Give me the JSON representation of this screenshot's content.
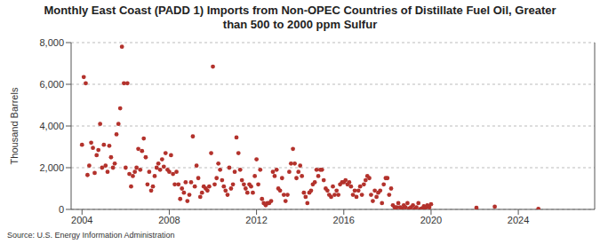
{
  "chart_data": {
    "type": "scatter",
    "title": "Monthly East Coast (PADD 1) Imports from Non-OPEC Countries of Distillate Fuel Oil, Greater than 500 to 2000 ppm Sulfur",
    "y_label": "Thousand Barrels",
    "source": "Source: U.S. Energy Information Administration",
    "color": "#b3322c",
    "marker": "circle",
    "grid": true,
    "xlim": [
      2003.5,
      2027.5
    ],
    "xticks": [
      2004,
      2008,
      2012,
      2016,
      2020,
      2024
    ],
    "ylim": [
      0,
      8000
    ],
    "yticks": [
      0,
      {
        "value": 2000,
        "label": "2,000"
      },
      {
        "value": 4000,
        "label": "4,000"
      },
      {
        "value": 6000,
        "label": "6,000"
      },
      {
        "value": 8000,
        "label": "8,000"
      }
    ],
    "x": [
      2004.0,
      2004.08,
      2004.17,
      2004.25,
      2004.33,
      2004.42,
      2004.5,
      2004.58,
      2004.67,
      2004.75,
      2004.83,
      2004.92,
      2005.0,
      2005.08,
      2005.17,
      2005.25,
      2005.33,
      2005.42,
      2005.5,
      2005.58,
      2005.67,
      2005.75,
      2005.83,
      2005.92,
      2006.0,
      2006.08,
      2006.17,
      2006.25,
      2006.33,
      2006.42,
      2006.5,
      2006.58,
      2006.67,
      2006.75,
      2006.83,
      2006.92,
      2007.0,
      2007.08,
      2007.17,
      2007.25,
      2007.33,
      2007.42,
      2007.5,
      2007.58,
      2007.67,
      2007.75,
      2007.83,
      2007.92,
      2008.0,
      2008.08,
      2008.17,
      2008.25,
      2008.33,
      2008.42,
      2008.5,
      2008.58,
      2008.67,
      2008.75,
      2008.83,
      2008.92,
      2009.0,
      2009.08,
      2009.17,
      2009.25,
      2009.33,
      2009.42,
      2009.5,
      2009.58,
      2009.67,
      2009.75,
      2009.83,
      2009.92,
      2010.0,
      2010.08,
      2010.17,
      2010.25,
      2010.33,
      2010.42,
      2010.5,
      2010.58,
      2010.67,
      2010.75,
      2010.83,
      2010.92,
      2011.0,
      2011.08,
      2011.17,
      2011.25,
      2011.33,
      2011.42,
      2011.5,
      2011.58,
      2011.67,
      2011.75,
      2011.83,
      2011.92,
      2012.0,
      2012.08,
      2012.17,
      2012.25,
      2012.33,
      2012.42,
      2012.5,
      2012.58,
      2012.67,
      2012.75,
      2012.83,
      2012.92,
      2013.0,
      2013.08,
      2013.17,
      2013.25,
      2013.33,
      2013.42,
      2013.5,
      2013.58,
      2013.67,
      2013.75,
      2013.83,
      2013.92,
      2014.0,
      2014.08,
      2014.17,
      2014.25,
      2014.33,
      2014.42,
      2014.5,
      2014.58,
      2014.67,
      2014.75,
      2014.83,
      2014.92,
      2015.0,
      2015.08,
      2015.17,
      2015.25,
      2015.33,
      2015.42,
      2015.5,
      2015.58,
      2015.67,
      2015.75,
      2015.83,
      2015.92,
      2016.0,
      2016.08,
      2016.17,
      2016.25,
      2016.33,
      2016.42,
      2016.5,
      2016.58,
      2016.67,
      2016.75,
      2016.83,
      2016.92,
      2017.0,
      2017.08,
      2017.17,
      2017.25,
      2017.33,
      2017.42,
      2017.5,
      2017.58,
      2017.67,
      2017.75,
      2017.83,
      2017.92,
      2018.0,
      2018.08,
      2018.17,
      2018.25,
      2018.33,
      2018.42,
      2018.5,
      2018.58,
      2018.67,
      2018.75,
      2018.83,
      2018.92,
      2019.0,
      2019.08,
      2019.17,
      2019.25,
      2019.33,
      2019.42,
      2019.5,
      2019.58,
      2019.67,
      2019.75,
      2019.83,
      2019.92,
      2020.0,
      2022.08,
      2022.92,
      2024.92
    ],
    "values": [
      3100,
      6350,
      6050,
      1650,
      2100,
      3200,
      2950,
      1750,
      2600,
      2850,
      4100,
      2000,
      3100,
      2100,
      1800,
      3050,
      2500,
      2000,
      2200,
      3600,
      4100,
      4850,
      7800,
      6050,
      2000,
      6050,
      1700,
      1100,
      1600,
      1800,
      2000,
      2900,
      1900,
      2800,
      3400,
      2500,
      1200,
      1800,
      900,
      1100,
      1600,
      2000,
      2200,
      1900,
      2400,
      2050,
      2700,
      1900,
      1800,
      2600,
      1700,
      1200,
      1800,
      1200,
      500,
      1000,
      800,
      1300,
      400,
      700,
      1300,
      3500,
      1100,
      2100,
      1500,
      600,
      800,
      1100,
      1000,
      900,
      1100,
      2700,
      6850,
      1200,
      1500,
      2200,
      1900,
      1400,
      1100,
      900,
      700,
      2000,
      1000,
      1200,
      1800,
      3450,
      2700,
      1900,
      1400,
      1200,
      1000,
      800,
      1200,
      1100,
      800,
      1600,
      2400,
      1200,
      1900,
      500,
      300,
      200,
      300,
      300,
      400,
      1800,
      1600,
      1900,
      1000,
      900,
      1500,
      700,
      400,
      700,
      1800,
      2200,
      2900,
      2200,
      1500,
      1800,
      2100,
      1600,
      800,
      600,
      300,
      800,
      900,
      1200,
      1300,
      1900,
      1600,
      1900,
      1900,
      1400,
      1000,
      900,
      700,
      600,
      1100,
      700,
      900,
      700,
      1200,
      1300,
      1300,
      1400,
      1200,
      1300,
      1100,
      700,
      900,
      600,
      900,
      1100,
      700,
      1200,
      1400,
      1600,
      1500,
      700,
      400,
      900,
      600,
      800,
      900,
      300,
      1200,
      1500,
      1500,
      700,
      1000,
      200,
      100,
      100,
      300,
      100,
      50,
      200,
      100,
      300,
      50,
      100,
      200,
      30,
      100,
      300,
      20,
      50,
      150,
      80,
      200,
      100,
      250,
      80,
      130,
      30
    ]
  }
}
